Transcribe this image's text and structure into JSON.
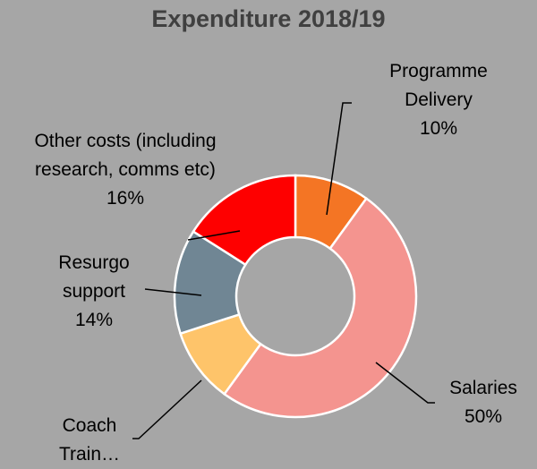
{
  "chart_data": {
    "type": "pie",
    "title": "Expenditure 2018/19",
    "categories": [
      "Programme Delivery",
      "Salaries",
      "Coach Train…",
      "Resurgo support",
      "Other costs (including research, comms etc)"
    ],
    "values": [
      10,
      50,
      10,
      14,
      16
    ],
    "value_labels": [
      "10%",
      "50%",
      null,
      "14%",
      "16%"
    ],
    "colors": [
      "#f47524",
      "#f4948f",
      "#fec46a",
      "#708694",
      "#fe0000"
    ]
  }
}
